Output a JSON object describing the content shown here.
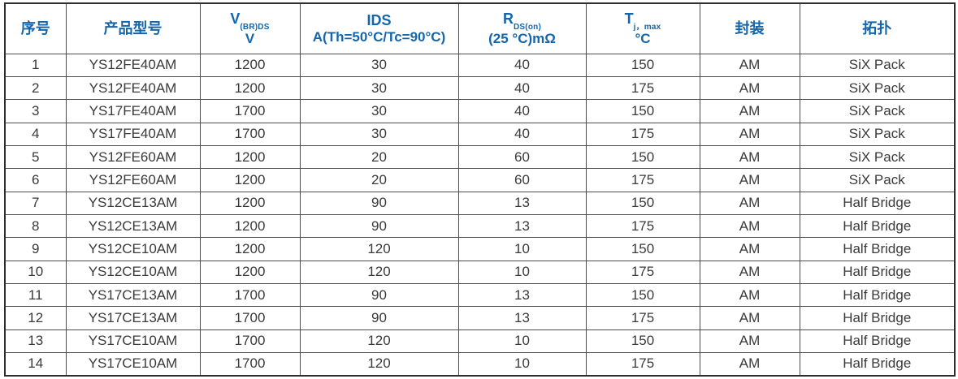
{
  "table": {
    "columns": [
      {
        "id": "index",
        "label": "序号"
      },
      {
        "id": "model",
        "label": "产品型号"
      },
      {
        "id": "vbrds",
        "label": "V",
        "sub": "(BR)DS",
        "line2": "V"
      },
      {
        "id": "ids",
        "label": "IDS",
        "line2": "A(Th=50°C/Tc=90°C)"
      },
      {
        "id": "rdson",
        "label": "R",
        "sub": "DS(on)",
        "line2": "(25 °C)mΩ"
      },
      {
        "id": "tjmax",
        "label": "T",
        "sub": "j，max",
        "line2": "°C"
      },
      {
        "id": "package",
        "label": "封装"
      },
      {
        "id": "topology",
        "label": "拓扑"
      }
    ],
    "rows": [
      [
        "1",
        "YS12FE40AM",
        "1200",
        "30",
        "40",
        "150",
        "AM",
        "SiX Pack"
      ],
      [
        "2",
        "YS12FE40AM",
        "1200",
        "30",
        "40",
        "175",
        "AM",
        "SiX Pack"
      ],
      [
        "3",
        "YS17FE40AM",
        "1700",
        "30",
        "40",
        "150",
        "AM",
        "SiX Pack"
      ],
      [
        "4",
        "YS17FE40AM",
        "1700",
        "30",
        "40",
        "175",
        "AM",
        "SiX Pack"
      ],
      [
        "5",
        "YS12FE60AM",
        "1200",
        "20",
        "60",
        "150",
        "AM",
        "SiX Pack"
      ],
      [
        "6",
        "YS12FE60AM",
        "1200",
        "20",
        "60",
        "175",
        "AM",
        "SiX Pack"
      ],
      [
        "7",
        "YS12CE13AM",
        "1200",
        "90",
        "13",
        "150",
        "AM",
        "Half Bridge"
      ],
      [
        "8",
        "YS12CE13AM",
        "1200",
        "90",
        "13",
        "175",
        "AM",
        "Half Bridge"
      ],
      [
        "9",
        "YS12CE10AM",
        "1200",
        "120",
        "10",
        "150",
        "AM",
        "Half Bridge"
      ],
      [
        "10",
        "YS12CE10AM",
        "1200",
        "120",
        "10",
        "175",
        "AM",
        "Half Bridge"
      ],
      [
        "11",
        "YS17CE13AM",
        "1700",
        "90",
        "13",
        "150",
        "AM",
        "Half Bridge"
      ],
      [
        "12",
        "YS17CE13AM",
        "1700",
        "90",
        "13",
        "175",
        "AM",
        "Half Bridge"
      ],
      [
        "13",
        "YS17CE10AM",
        "1700",
        "120",
        "10",
        "150",
        "AM",
        "Half Bridge"
      ],
      [
        "14",
        "YS17CE10AM",
        "1700",
        "120",
        "10",
        "175",
        "AM",
        "Half Bridge"
      ]
    ]
  },
  "colors": {
    "header_text": "#1565ab",
    "body_text": "#3a3a3a",
    "border": "#4d4d4d",
    "outer_border": "#2e2e2e",
    "background": "#ffffff"
  }
}
